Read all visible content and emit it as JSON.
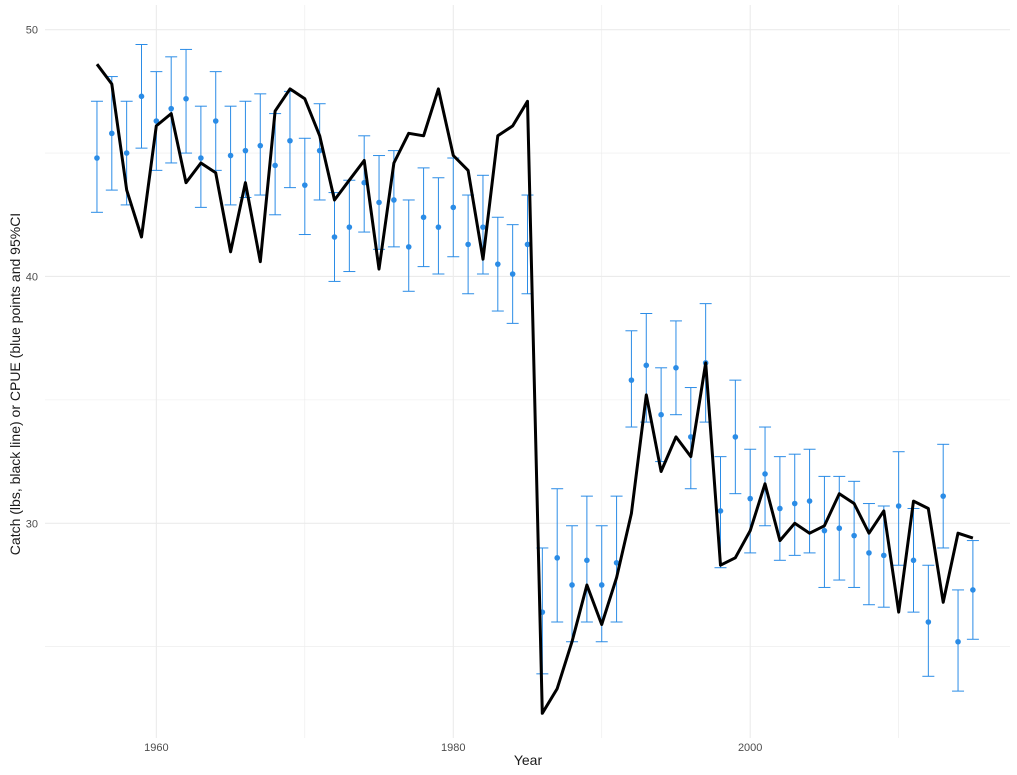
{
  "chart_data": {
    "type": "line",
    "title": "",
    "xlabel": "Year",
    "ylabel": "Catch (lbs, black line) or CPUE (blue points and 95%CI",
    "xlim": [
      1952.5,
      2017.5
    ],
    "ylim": [
      21.3,
      51.0
    ],
    "x_ticks": [
      1960,
      1980,
      2000
    ],
    "y_ticks": [
      30,
      40,
      50
    ],
    "grid": true,
    "legend": "none",
    "colors": {
      "catch_line": "#000000",
      "cpue": "#2b8ce6",
      "grid": "#ebebeb"
    },
    "catch_series": {
      "x": [
        1956,
        1957,
        1958,
        1959,
        1960,
        1961,
        1962,
        1963,
        1964,
        1965,
        1966,
        1967,
        1968,
        1969,
        1970,
        1971,
        1972,
        1973,
        1974,
        1975,
        1976,
        1977,
        1978,
        1979,
        1980,
        1981,
        1982,
        1983,
        1984,
        1985,
        1986,
        1987,
        1988,
        1989,
        1990,
        1991,
        1992,
        1993,
        1994,
        1995,
        1996,
        1997,
        1998,
        1999,
        2000,
        2001,
        2002,
        2003,
        2004,
        2005,
        2006,
        2007,
        2008,
        2009,
        2010,
        2011,
        2012,
        2013,
        2014,
        2015
      ],
      "y": [
        48.6,
        47.8,
        43.5,
        41.6,
        46.1,
        46.6,
        43.8,
        44.6,
        44.2,
        41.0,
        43.8,
        40.6,
        46.7,
        47.6,
        47.2,
        45.7,
        43.1,
        43.9,
        44.7,
        40.3,
        44.6,
        45.8,
        45.7,
        47.6,
        44.9,
        44.3,
        40.7,
        45.7,
        46.1,
        47.1,
        22.3,
        23.3,
        25.2,
        27.5,
        25.9,
        27.8,
        30.4,
        35.2,
        32.1,
        33.5,
        32.7,
        36.5,
        28.3,
        28.6,
        29.7,
        31.6,
        29.3,
        30.0,
        29.6,
        29.9,
        31.2,
        30.8,
        29.6,
        30.5,
        26.4,
        30.9,
        30.6,
        26.8,
        29.6,
        29.4
      ]
    },
    "cpue_series": {
      "x": [
        1956,
        1957,
        1958,
        1959,
        1960,
        1961,
        1962,
        1963,
        1964,
        1965,
        1966,
        1967,
        1968,
        1969,
        1970,
        1971,
        1972,
        1973,
        1974,
        1975,
        1976,
        1977,
        1978,
        1979,
        1980,
        1981,
        1982,
        1983,
        1984,
        1985,
        1986,
        1987,
        1988,
        1989,
        1990,
        1991,
        1992,
        1993,
        1994,
        1995,
        1996,
        1997,
        1998,
        1999,
        2000,
        2001,
        2002,
        2003,
        2004,
        2005,
        2006,
        2007,
        2008,
        2009,
        2010,
        2011,
        2012,
        2013,
        2014,
        2015
      ],
      "y": [
        44.8,
        45.8,
        45.0,
        47.3,
        46.3,
        46.8,
        47.2,
        44.8,
        46.3,
        44.9,
        45.1,
        45.3,
        44.5,
        45.5,
        43.7,
        45.1,
        41.6,
        42.0,
        43.8,
        43.0,
        43.1,
        41.2,
        42.4,
        42.0,
        42.8,
        41.3,
        42.0,
        40.5,
        40.1,
        41.3,
        26.4,
        28.6,
        27.5,
        28.5,
        27.5,
        28.4,
        35.8,
        36.4,
        34.4,
        36.3,
        33.5,
        36.5,
        30.5,
        33.5,
        31.0,
        32.0,
        30.6,
        30.8,
        30.9,
        29.7,
        29.8,
        29.5,
        28.8,
        28.7,
        30.7,
        28.5,
        26.0,
        31.1,
        25.2,
        27.3
      ],
      "ci_low": [
        42.6,
        43.5,
        42.9,
        45.2,
        44.3,
        44.6,
        45.0,
        42.8,
        44.3,
        42.9,
        43.2,
        43.3,
        42.5,
        43.6,
        41.7,
        43.1,
        39.8,
        40.2,
        41.8,
        41.1,
        41.2,
        39.4,
        40.4,
        40.1,
        40.8,
        39.3,
        40.1,
        38.6,
        38.1,
        39.3,
        23.9,
        26.0,
        25.2,
        26.0,
        25.2,
        26.0,
        33.9,
        34.1,
        32.5,
        34.4,
        31.4,
        34.1,
        28.2,
        31.2,
        28.8,
        29.9,
        28.5,
        28.7,
        28.8,
        27.4,
        27.7,
        27.4,
        26.7,
        26.6,
        28.3,
        26.4,
        23.8,
        29.0,
        23.2,
        25.3
      ],
      "ci_high": [
        47.1,
        48.1,
        47.1,
        49.4,
        48.3,
        48.9,
        49.2,
        46.9,
        48.3,
        46.9,
        47.1,
        47.4,
        46.6,
        47.5,
        45.6,
        47.0,
        43.4,
        43.9,
        45.7,
        44.9,
        45.1,
        43.1,
        44.4,
        44.0,
        44.8,
        43.3,
        44.1,
        42.4,
        42.1,
        43.3,
        29.0,
        31.4,
        29.9,
        31.1,
        29.9,
        31.1,
        37.8,
        38.5,
        36.3,
        38.2,
        35.5,
        38.9,
        32.7,
        35.8,
        33.0,
        33.9,
        32.7,
        32.8,
        33.0,
        31.9,
        31.9,
        31.7,
        30.8,
        30.7,
        32.9,
        30.6,
        28.3,
        33.2,
        27.3,
        29.3
      ]
    }
  }
}
